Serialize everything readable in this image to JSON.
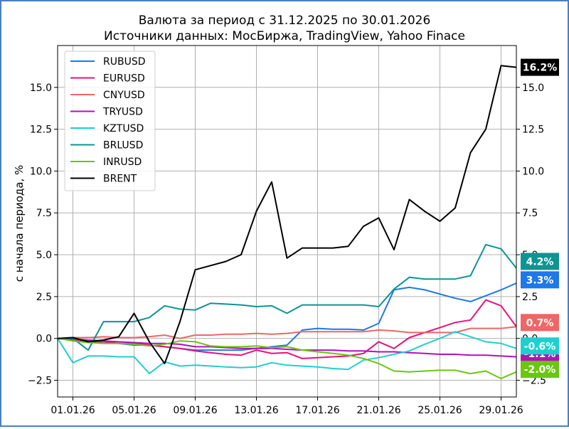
{
  "chart_data": {
    "type": "line",
    "title": "Валюта за период с 31.12.2025 по 30.01.2026",
    "subtitle": "Источники данных: МосБиржа, TradingView, Yahoo Finace",
    "xlabel": "",
    "ylabel": "с начала периода, %",
    "xlim": [
      0,
      30
    ],
    "ylim": [
      -3.5,
      17.5
    ],
    "x_ticks": [
      {
        "x": 1,
        "label": "01.01.26"
      },
      {
        "x": 5,
        "label": "05.01.26"
      },
      {
        "x": 9,
        "label": "09.01.26"
      },
      {
        "x": 13,
        "label": "13.01.26"
      },
      {
        "x": 17,
        "label": "17.01.26"
      },
      {
        "x": 21,
        "label": "21.01.26"
      },
      {
        "x": 25,
        "label": "25.01.26"
      },
      {
        "x": 29,
        "label": "29.01.26"
      }
    ],
    "y_ticks": [
      {
        "y": -2.5,
        "label": "−2.5"
      },
      {
        "y": 0,
        "label": "0.0"
      },
      {
        "y": 2.5,
        "label": "2.5"
      },
      {
        "y": 5,
        "label": "5.0"
      },
      {
        "y": 7.5,
        "label": "7.5"
      },
      {
        "y": 10,
        "label": "10.0"
      },
      {
        "y": 12.5,
        "label": "12.5"
      },
      {
        "y": 15,
        "label": "15.0"
      }
    ],
    "grid": true,
    "legend_position": "top-left",
    "series": [
      {
        "name": "RUBUSD",
        "color": "#1f77e8",
        "x": [
          0,
          1,
          2,
          3,
          4,
          5,
          6,
          7,
          8,
          9,
          10,
          11,
          12,
          13,
          14,
          15,
          16,
          17,
          18,
          19,
          20,
          21,
          22,
          23,
          24,
          25,
          26,
          27,
          28,
          29,
          30
        ],
        "y": [
          0,
          0,
          -0.2,
          -0.2,
          -0.3,
          -0.4,
          -0.4,
          -0.5,
          -0.6,
          -0.7,
          -0.7,
          -0.7,
          -0.7,
          -0.6,
          -0.5,
          -0.4,
          0.5,
          0.6,
          0.55,
          0.55,
          0.5,
          0.9,
          2.9,
          3.05,
          2.9,
          2.65,
          2.4,
          2.2,
          2.55,
          2.9,
          3.3
        ]
      },
      {
        "name": "EURUSD",
        "color": "#e8117a",
        "x": [
          0,
          1,
          2,
          3,
          4,
          5,
          6,
          7,
          8,
          9,
          10,
          11,
          12,
          13,
          14,
          15,
          16,
          17,
          18,
          19,
          20,
          21,
          22,
          23,
          24,
          25,
          26,
          27,
          28,
          29,
          30
        ],
        "y": [
          0,
          -0.1,
          -0.2,
          -0.2,
          -0.3,
          -0.3,
          -0.4,
          -0.5,
          -0.6,
          -0.75,
          -0.85,
          -0.95,
          -1.0,
          -0.7,
          -0.9,
          -0.85,
          -1.2,
          -1.15,
          -1.1,
          -1.05,
          -0.9,
          -0.2,
          -0.6,
          0.05,
          0.35,
          0.65,
          0.95,
          1.1,
          2.3,
          1.95,
          0.7
        ]
      },
      {
        "name": "CNYUSD",
        "color": "#f06565",
        "x": [
          0,
          1,
          2,
          3,
          4,
          5,
          6,
          7,
          8,
          9,
          10,
          11,
          12,
          13,
          14,
          15,
          16,
          17,
          18,
          19,
          20,
          21,
          22,
          23,
          24,
          25,
          26,
          27,
          28,
          29,
          30
        ],
        "y": [
          0,
          0.05,
          0.05,
          0.1,
          0.05,
          0.05,
          0.1,
          0.2,
          0.0,
          0.2,
          0.2,
          0.25,
          0.25,
          0.3,
          0.25,
          0.3,
          0.4,
          0.4,
          0.4,
          0.4,
          0.4,
          0.5,
          0.45,
          0.35,
          0.35,
          0.35,
          0.35,
          0.6,
          0.6,
          0.6,
          0.7
        ]
      },
      {
        "name": "TRYUSD",
        "color": "#b012b8",
        "x": [
          0,
          1,
          2,
          3,
          4,
          5,
          6,
          7,
          8,
          9,
          10,
          11,
          12,
          13,
          14,
          15,
          16,
          17,
          18,
          19,
          20,
          21,
          22,
          23,
          24,
          25,
          26,
          27,
          28,
          29,
          30
        ],
        "y": [
          0,
          -0.05,
          -0.1,
          -0.15,
          -0.2,
          -0.25,
          -0.3,
          -0.3,
          -0.35,
          -0.5,
          -0.5,
          -0.55,
          -0.6,
          -0.6,
          -0.6,
          -0.65,
          -0.7,
          -0.7,
          -0.7,
          -0.75,
          -0.75,
          -0.8,
          -0.8,
          -0.85,
          -0.9,
          -0.95,
          -0.95,
          -1.0,
          -1.0,
          -1.05,
          -1.1
        ]
      },
      {
        "name": "KZTUSD",
        "color": "#1fcfcf",
        "x": [
          0,
          1,
          2,
          3,
          4,
          5,
          6,
          7,
          8,
          9,
          10,
          11,
          12,
          13,
          14,
          15,
          16,
          17,
          18,
          19,
          20,
          21,
          22,
          23,
          24,
          25,
          26,
          27,
          28,
          29,
          30
        ],
        "y": [
          0,
          -1.45,
          -1.05,
          -1.05,
          -1.1,
          -1.1,
          -2.1,
          -1.4,
          -1.65,
          -1.6,
          -1.65,
          -1.7,
          -1.75,
          -1.7,
          -1.45,
          -1.6,
          -1.65,
          -1.7,
          -1.8,
          -1.85,
          -1.3,
          -1.15,
          -0.95,
          -0.75,
          -0.35,
          0.0,
          0.4,
          0.1,
          -0.2,
          -0.3,
          -0.6
        ]
      },
      {
        "name": "BRLUSD",
        "color": "#0d9494",
        "x": [
          0,
          1,
          2,
          3,
          4,
          5,
          6,
          7,
          8,
          9,
          10,
          11,
          12,
          13,
          14,
          15,
          16,
          17,
          18,
          19,
          20,
          21,
          22,
          23,
          24,
          25,
          26,
          27,
          28,
          29,
          30
        ],
        "y": [
          0,
          0,
          -0.7,
          1.0,
          1.0,
          1.0,
          1.25,
          1.95,
          1.75,
          1.7,
          2.1,
          2.05,
          2.0,
          1.9,
          1.95,
          1.5,
          2.0,
          2.0,
          2.0,
          2.0,
          2.0,
          1.9,
          2.95,
          3.65,
          3.55,
          3.55,
          3.55,
          3.75,
          5.6,
          5.35,
          4.2
        ]
      },
      {
        "name": "INRUSD",
        "color": "#6cc60f",
        "x": [
          0,
          1,
          2,
          3,
          4,
          5,
          6,
          7,
          8,
          9,
          10,
          11,
          12,
          13,
          14,
          15,
          16,
          17,
          18,
          19,
          20,
          21,
          22,
          23,
          24,
          25,
          26,
          27,
          28,
          29,
          30
        ],
        "y": [
          0,
          -0.15,
          -0.25,
          -0.3,
          -0.3,
          -0.35,
          -0.45,
          -0.35,
          -0.15,
          -0.2,
          -0.45,
          -0.5,
          -0.5,
          -0.45,
          -0.55,
          -0.5,
          -0.7,
          -0.8,
          -0.9,
          -1.0,
          -1.2,
          -1.5,
          -1.95,
          -2.0,
          -1.95,
          -1.9,
          -1.9,
          -2.1,
          -1.95,
          -2.4,
          -2.0
        ]
      },
      {
        "name": "BRENT",
        "color": "#000000",
        "x": [
          0,
          1,
          2,
          3,
          4,
          5,
          6,
          7,
          8,
          9,
          10,
          11,
          12,
          13,
          14,
          15,
          16,
          17,
          18,
          19,
          20,
          21,
          22,
          23,
          24,
          25,
          26,
          27,
          28,
          29,
          30
        ],
        "y": [
          0,
          0.05,
          -0.2,
          -0.1,
          0.1,
          1.5,
          -0.2,
          -1.5,
          1.0,
          4.1,
          4.35,
          4.6,
          5.0,
          7.6,
          9.35,
          4.8,
          5.4,
          5.4,
          5.4,
          5.5,
          6.7,
          7.2,
          5.3,
          8.3,
          7.6,
          7.0,
          7.8,
          11.1,
          12.5,
          16.3,
          16.2
        ]
      }
    ],
    "badges": [
      {
        "text": "16.2%",
        "series": "BRENT",
        "color": "#000000",
        "y": 16.2
      },
      {
        "text": "4.2%",
        "series": "BRLUSD",
        "color": "#0d9494",
        "y": 4.6
      },
      {
        "text": "3.3%",
        "series": "RUBUSD",
        "color": "#1f77e8",
        "y": 3.5
      },
      {
        "text": "0.7%",
        "series": "EURUSD",
        "color": "#f06565",
        "y": 0.95
      },
      {
        "text": "-1.1%",
        "series": "TRYUSD",
        "color": "#b012b8",
        "y": -0.9
      },
      {
        "text": "-0.6%",
        "series": "KZTUSD",
        "color": "#1fcfcf",
        "y": -0.45
      },
      {
        "text": "-2.0%",
        "series": "INRUSD",
        "color": "#6cc60f",
        "y": -1.85
      }
    ]
  }
}
